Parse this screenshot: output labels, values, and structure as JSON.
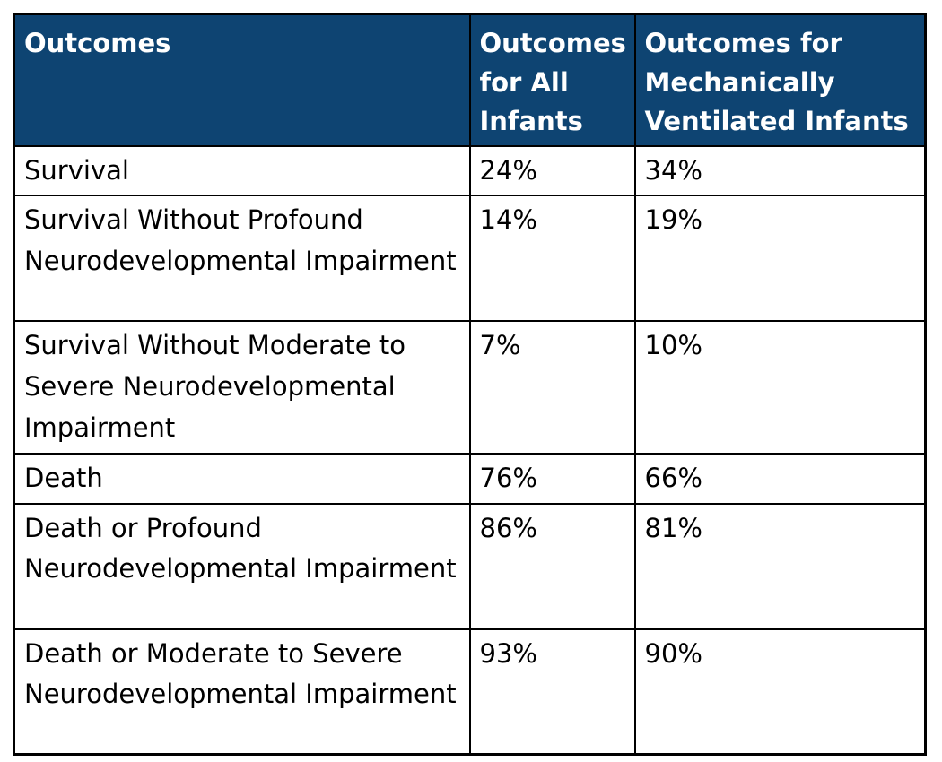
{
  "chart_data": {
    "type": "table",
    "columns": [
      "Outcomes",
      "Outcomes for All Infants",
      "Outcomes for Mechanically Ventilated Infants"
    ],
    "rows": [
      [
        "Survival",
        "24%",
        "34%"
      ],
      [
        "Survival Without Profound Neurodevelopmental Impairment",
        "14%",
        "19%"
      ],
      [
        "Survival Without Moderate to Severe Neurodevelopmental Impairment",
        "7%",
        "10%"
      ],
      [
        "Death",
        "76%",
        "66%"
      ],
      [
        "Death or Profound Neurodevelopmental Impairment",
        "86%",
        "81%"
      ],
      [
        "Death or Moderate to Severe Neurodevelopmental Impairment",
        "93%",
        "90%"
      ]
    ]
  },
  "colors": {
    "header_bg": "#0E4472",
    "header_text": "#FFFFFF",
    "body_text": "#000000",
    "border": "#000000",
    "background": "#FFFFFF"
  }
}
